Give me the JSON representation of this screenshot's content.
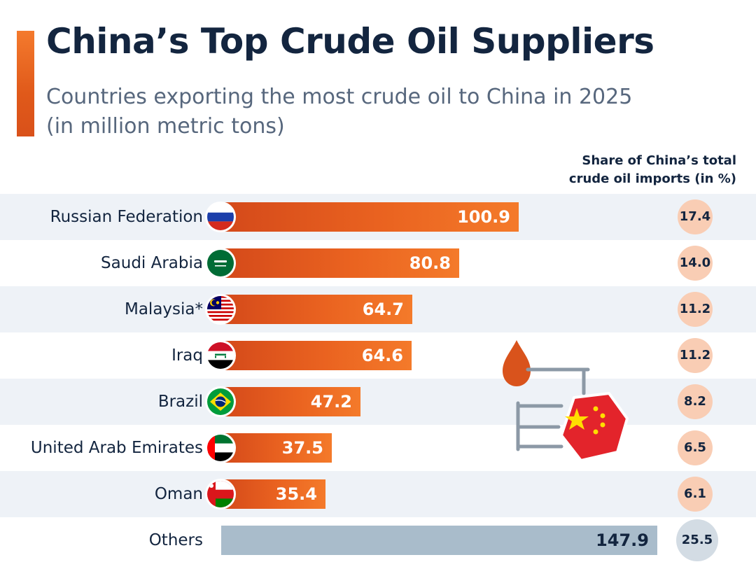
{
  "chart_data": {
    "type": "bar",
    "orientation": "horizontal",
    "title": "China’s Top Crude Oil Suppliers",
    "subtitle": "Countries exporting the most crude oil to China in 2025 (in million metric tons)",
    "share_header": "Share of China’s total crude oil imports (in %)",
    "categories": [
      "Russian Federation",
      "Saudi Arabia",
      "Malaysia*",
      "Iraq",
      "Brazil",
      "United Arab Emirates",
      "Oman",
      "Others"
    ],
    "values": [
      100.9,
      80.8,
      64.7,
      64.6,
      47.2,
      37.5,
      35.4,
      147.9
    ],
    "value_labels": [
      "100.9",
      "80.8",
      "64.7",
      "64.6",
      "47.2",
      "37.5",
      "35.4",
      "147.9"
    ],
    "shares": [
      17.4,
      14.0,
      11.2,
      11.2,
      8.2,
      6.5,
      6.1,
      25.5
    ],
    "share_labels": [
      "17.4",
      "14.0",
      "11.2",
      "11.2",
      "8.2",
      "6.5",
      "6.1",
      "25.5"
    ],
    "flags": [
      "russia-flag-icon",
      "saudi-arabia-flag-icon",
      "malaysia-flag-icon",
      "iraq-flag-icon",
      "brazil-flag-icon",
      "uae-flag-icon",
      "oman-flag-icon",
      ""
    ],
    "xlim": [
      0,
      147.9
    ],
    "colors": {
      "bar": "#e85f1f",
      "others_bar": "#a9bccb",
      "share_bubble": "#f9cdb4",
      "others_bubble": "#d3dce4",
      "title": "#13253f",
      "subtitle": "#57677d"
    }
  },
  "title_lines": {
    "line1": "Countries exporting the most crude oil to China in 2025",
    "line2": "(in million metric tons)"
  },
  "share_header_lines": {
    "line1": "Share of China’s total",
    "line2": "crude oil imports (in %)"
  }
}
